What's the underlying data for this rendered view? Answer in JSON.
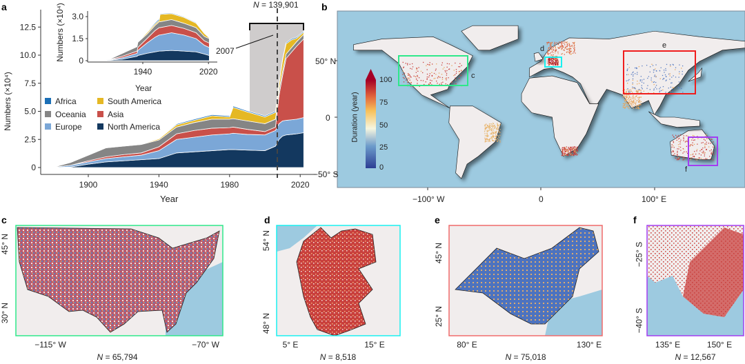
{
  "panels": {
    "a": "a",
    "b": "b",
    "c": "c",
    "d": "d",
    "e": "e",
    "f": "f"
  },
  "colors": {
    "Africa": "#1b6fb6",
    "Oceania": "#858585",
    "Europe": "#7ba7d7",
    "South America": "#e5b824",
    "Asia": "#c9504a",
    "North America": "#13385f",
    "ocean": "#9dcae0",
    "land": "#f1eded"
  },
  "chart_data": [
    {
      "type": "area",
      "stacked": true,
      "xlabel": "Year",
      "ylabel": "Numbers (×10⁴)",
      "xlim": [
        1875,
        2030
      ],
      "ylim": [
        0,
        13.5
      ],
      "xticks": [
        "1900",
        "1940",
        "1980",
        "2020"
      ],
      "yticks": [
        "0",
        "2.5",
        "5.0",
        "7.5",
        "10.0",
        "12.5"
      ],
      "legend": [
        "Africa",
        "Oceania",
        "Europe",
        "South America",
        "Asia",
        "North America"
      ],
      "legend_position": "middle-left",
      "annotation_total": "N = 139,901",
      "annotation_year": "2007",
      "marker_year": 2007,
      "highlight_range": [
        1992,
        2022
      ],
      "x": [
        1880,
        1890,
        1900,
        1910,
        1920,
        1930,
        1940,
        1950,
        1960,
        1970,
        1980,
        1982,
        1990,
        2000,
        2006,
        2008,
        2010,
        2012,
        2015,
        2018,
        2022
      ],
      "series": [
        {
          "name": "North America",
          "values": [
            0,
            0.05,
            0.3,
            0.5,
            0.6,
            0.7,
            0.8,
            1.3,
            1.4,
            1.5,
            1.6,
            1.6,
            1.55,
            1.5,
            1.9,
            2.5,
            2.8,
            2.9,
            2.95,
            3.0,
            3.1
          ]
        },
        {
          "name": "Europe",
          "values": [
            0.02,
            0.15,
            0.2,
            0.3,
            0.35,
            0.4,
            0.7,
            1.2,
            1.3,
            1.4,
            1.4,
            1.45,
            1.4,
            1.4,
            1.4,
            1.4,
            1.35,
            1.3,
            1.3,
            1.3,
            1.35
          ]
        },
        {
          "name": "Asia",
          "values": [
            0,
            0,
            0.1,
            0.15,
            0.2,
            0.2,
            0.35,
            0.5,
            0.6,
            0.6,
            0.55,
            0.55,
            0.45,
            0.3,
            0.3,
            2.5,
            4.0,
            5.5,
            6.0,
            6.5,
            7.0
          ]
        },
        {
          "name": "Oceania",
          "values": [
            0,
            0.25,
            0.5,
            0.8,
            0.75,
            0.75,
            0.6,
            0.6,
            0.7,
            0.8,
            0.75,
            0.75,
            0.75,
            0.7,
            0.7,
            0.5,
            0.4,
            0.4,
            0.4,
            0.4,
            0.4
          ]
        },
        {
          "name": "South America",
          "values": [
            0,
            0,
            0,
            0.02,
            0.03,
            0.03,
            0.1,
            0.2,
            0.2,
            0.3,
            0.2,
            1.0,
            0.8,
            0.6,
            0.6,
            0.5,
            1.0,
            0.9,
            0.7,
            0.3,
            0.2
          ]
        },
        {
          "name": "Africa",
          "values": [
            0,
            0,
            0,
            0.02,
            0.03,
            0.04,
            0.05,
            0.08,
            0.1,
            0.1,
            0.1,
            0.12,
            0.1,
            0.1,
            0.1,
            0.1,
            0.1,
            0.1,
            0.1,
            0.1,
            0.1
          ]
        }
      ]
    },
    {
      "type": "area",
      "stacked": true,
      "xlabel": "Year",
      "ylabel": "Numbers (×10⁴)",
      "ylim": [
        0,
        3.2
      ],
      "xticks": [
        "1940",
        "2020"
      ],
      "yticks": [
        "0",
        "1.5",
        "3.0"
      ],
      "x": [
        1880,
        1900,
        1915,
        1933,
        1934,
        1945,
        1955,
        1960,
        1961,
        1975,
        1990,
        2005,
        2015,
        2021
      ],
      "series": [
        {
          "name": "North America",
          "values": [
            0,
            0.05,
            0.1,
            0.3,
            0.35,
            0.5,
            0.6,
            0.65,
            0.65,
            0.7,
            0.65,
            0.6,
            0.45,
            0.35
          ]
        },
        {
          "name": "Europe",
          "values": [
            0,
            0.02,
            0.1,
            0.2,
            0.35,
            0.7,
            1.0,
            1.1,
            1.1,
            1.2,
            1.1,
            0.9,
            0.6,
            0.55
          ]
        },
        {
          "name": "Asia",
          "values": [
            0,
            0.02,
            0.1,
            0.15,
            0.2,
            0.3,
            0.45,
            0.5,
            0.5,
            0.5,
            0.45,
            0.4,
            0.3,
            0.3
          ]
        },
        {
          "name": "Oceania",
          "values": [
            0,
            0.03,
            0.2,
            0.3,
            0.35,
            0.3,
            0.35,
            0.4,
            0.4,
            0.4,
            0.35,
            0.35,
            0.3,
            0.3
          ]
        },
        {
          "name": "South America",
          "values": [
            0,
            0,
            0,
            0.02,
            0.02,
            0.1,
            0.1,
            0.1,
            0.5,
            0.4,
            0.4,
            0.3,
            0.2,
            0.05
          ]
        },
        {
          "name": "Africa",
          "values": [
            0,
            0,
            0,
            0.03,
            0.03,
            0.05,
            0.08,
            0.1,
            0.05,
            0.05,
            0.05,
            0.05,
            0.05,
            0.05
          ]
        }
      ]
    }
  ],
  "map_b": {
    "lon_ticks": [
      "−100° W",
      "0",
      "100° E"
    ],
    "lat_ticks": [
      "50° N",
      "0",
      "−50° S"
    ],
    "colorbar": {
      "label": "Duration (year)",
      "ticks": [
        "100",
        "75",
        "50",
        "25",
        "0"
      ],
      "range": [
        0,
        100
      ],
      "colors": [
        "#2c3e94",
        "#6c9bcb",
        "#f6f6e0",
        "#f7c15a",
        "#e0603b",
        "#a50026"
      ]
    },
    "region_labels": {
      "c": "c",
      "d": "d",
      "e": "e",
      "f": "f"
    },
    "region_colors": {
      "c": "#2ee88a",
      "d": "#19f0f0",
      "e": "#f01c1c",
      "f": "#a43cf0"
    }
  },
  "map_c": {
    "lat_ticks": [
      "45° N",
      "30° N"
    ],
    "lon_ticks": [
      "−115° W",
      "−70° W"
    ],
    "n_label": "N",
    "n_value": " = 65,794"
  },
  "map_d": {
    "lat_ticks": [
      "54° N",
      "48° N"
    ],
    "lon_ticks": [
      "5° E",
      "15° E"
    ],
    "n_label": "N",
    "n_value": " = 8,518"
  },
  "map_e": {
    "lat_ticks": [
      "45° N",
      "25° N"
    ],
    "lon_ticks": [
      "80° E",
      "130° E"
    ],
    "n_label": "N",
    "n_value": " = 75,018"
  },
  "map_f": {
    "lat_ticks": [
      "−25° S",
      "−40° S"
    ],
    "lon_ticks": [
      "135° E",
      "150° E"
    ],
    "n_label": "N",
    "n_value": " = 12,567"
  }
}
